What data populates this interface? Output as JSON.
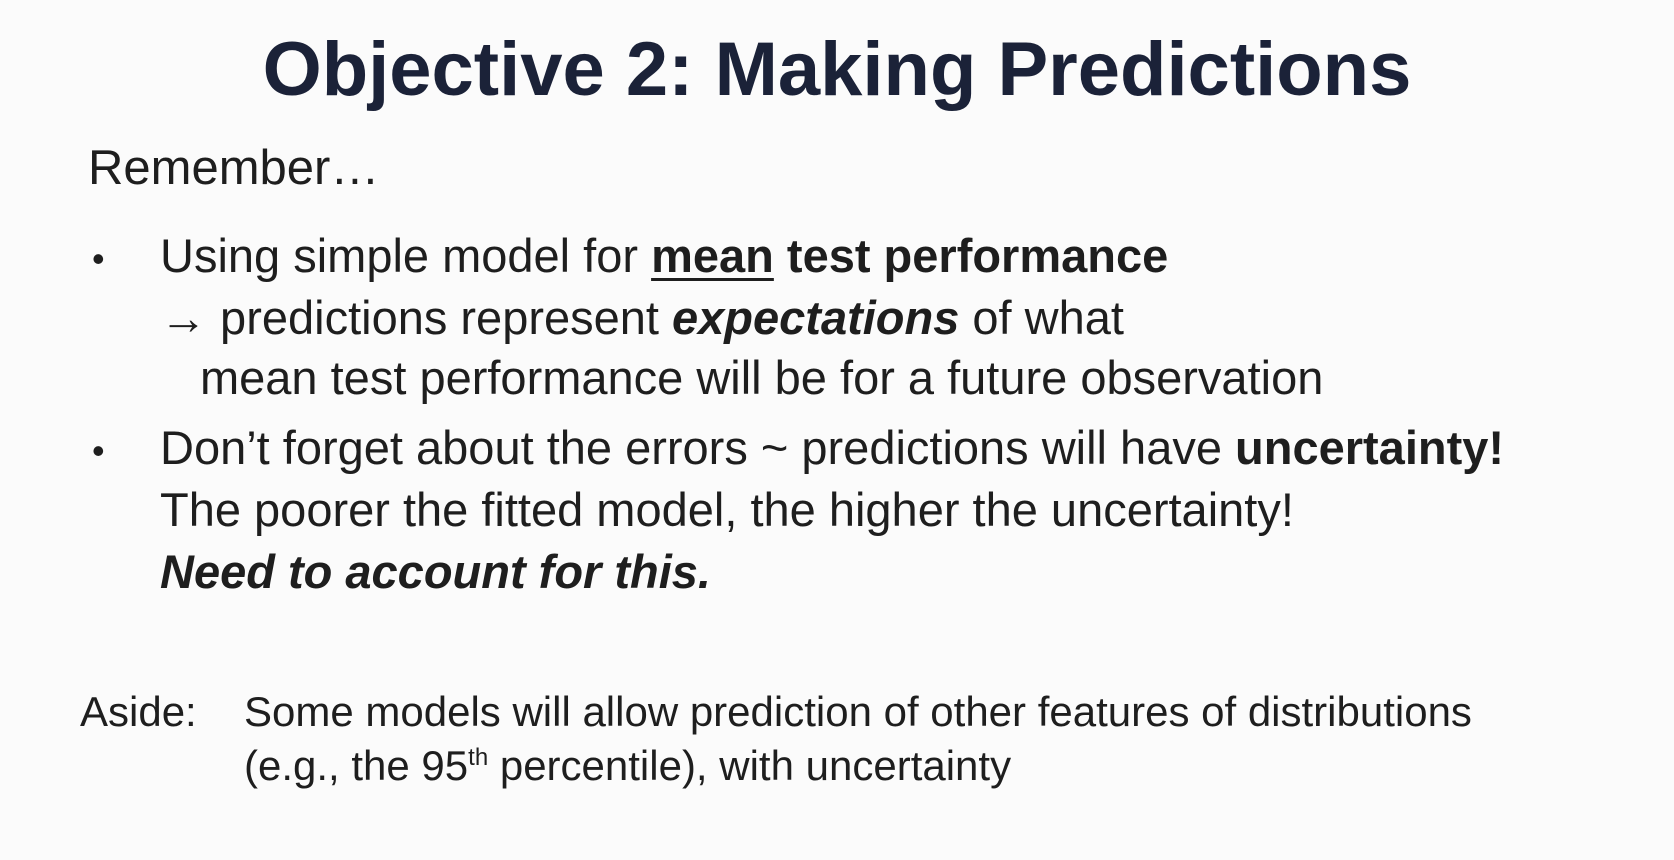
{
  "title": "Objective 2: Making Predictions",
  "remember": "Remember…",
  "bullet_1": {
    "marker": "•",
    "line1_plain": "Using simple model for ",
    "line1_underlined": "mean",
    "line1_bold": " test performance",
    "line2_arrow": "→",
    "line2_plain_a": " predictions represent ",
    "line2_bold_italic": "expectations",
    "line2_plain_b": " of what",
    "line3": "mean test performance will be for a future observation"
  },
  "bullet_2": {
    "marker": "•",
    "line1_plain": "Don’t forget about the errors ~ predictions will have ",
    "line1_bold": "uncertainty!",
    "line2": "The poorer the fitted model, the higher the uncertainty!",
    "line3": "Need to account for this."
  },
  "aside": {
    "label": "Aside:",
    "line1": "Some models will allow prediction of other features of distributions",
    "line2_a": "(e.g., the 95",
    "line2_sup": "th",
    "line2_b": " percentile), with uncertainty"
  }
}
